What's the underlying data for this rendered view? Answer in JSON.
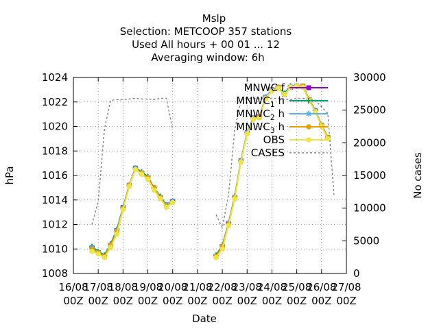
{
  "chart_data": {
    "type": "line",
    "title": [
      "Mslp",
      "Selection: METCOOP    357 stations",
      "Used  All hours  + 00 01 ... 12",
      "Averaging window:  6h"
    ],
    "xlabel": "Date",
    "ylabel": "hPa",
    "y2label": "No cases",
    "x_unit": "days from 16/08 00Z",
    "xlim": [
      0,
      11
    ],
    "ylim": [
      1008,
      1024
    ],
    "y2lim": [
      0,
      30000
    ],
    "x_ticks": [
      {
        "x": 0,
        "l1": "16/08",
        "l2": "00Z"
      },
      {
        "x": 1,
        "l1": "17/08",
        "l2": "00Z"
      },
      {
        "x": 2,
        "l1": "18/08",
        "l2": "00Z"
      },
      {
        "x": 3,
        "l1": "19/08",
        "l2": "00Z"
      },
      {
        "x": 4,
        "l1": "20/08",
        "l2": "00Z"
      },
      {
        "x": 5,
        "l1": "21/08",
        "l2": "00Z"
      },
      {
        "x": 6,
        "l1": "22/08",
        "l2": "00Z"
      },
      {
        "x": 7,
        "l1": "23/08",
        "l2": "00Z"
      },
      {
        "x": 8,
        "l1": "24/08",
        "l2": "00Z"
      },
      {
        "x": 9,
        "l1": "25/08",
        "l2": "00Z"
      },
      {
        "x": 10,
        "l1": "26/08",
        "l2": "00Z"
      },
      {
        "x": 11,
        "l1": "27/08",
        "l2": "00Z"
      }
    ],
    "y_ticks": [
      1008,
      1010,
      1012,
      1014,
      1016,
      1018,
      1020,
      1022,
      1024
    ],
    "y2_ticks": [
      0,
      5000,
      10000,
      15000,
      20000,
      25000,
      30000
    ],
    "grid": true,
    "legend_position": "top-right",
    "x": [
      0.75,
      1.0,
      1.25,
      1.5,
      1.75,
      2.0,
      2.25,
      2.5,
      2.75,
      3.0,
      3.25,
      3.5,
      3.75,
      4.0,
      5.75,
      6.0,
      6.25,
      6.5,
      6.75,
      7.0,
      7.25,
      7.5,
      7.75,
      8.0,
      8.25,
      8.5,
      8.75,
      9.0,
      9.25,
      9.5,
      9.75,
      10.0,
      10.25,
      10.5
    ],
    "series": [
      {
        "name": "MNWC_f",
        "color": "#9400d3",
        "marker": "square",
        "axis": "left",
        "values": [
          1010.1,
          1009.7,
          1009.4,
          1010.3,
          1011.5,
          1013.4,
          1015.2,
          1016.6,
          1016.2,
          1015.8,
          1015.0,
          1014.2,
          1013.6,
          1013.9,
          1009.4,
          1010.2,
          1012.1,
          1014.2,
          1017.2,
          1019.5,
          1020.7,
          1020.8,
          1022.4,
          1023.0,
          1023.2,
          1022.6,
          1023.2,
          1023.3,
          1023.3,
          1022.2,
          1021.3,
          1020.1,
          1019.1,
          null
        ]
      },
      {
        "name": "MNWC_1h",
        "color": "#009e73",
        "marker": "plus",
        "axis": "left",
        "values": [
          1010.2,
          1009.8,
          1009.5,
          1010.4,
          1011.6,
          1013.4,
          1015.2,
          1016.6,
          1016.3,
          1015.9,
          1015.0,
          1014.3,
          1013.6,
          1013.9,
          1009.5,
          1010.3,
          1012.1,
          1014.3,
          1017.2,
          1019.5,
          1020.7,
          1020.8,
          1022.4,
          1023.0,
          1023.2,
          1022.7,
          1023.3,
          1023.3,
          1023.3,
          1022.2,
          1021.3,
          1020.1,
          1019.1,
          null
        ]
      },
      {
        "name": "MNWC_2h",
        "color": "#56b4e9",
        "marker": "star",
        "axis": "left",
        "values": [
          1010.1,
          1009.7,
          1009.4,
          1010.3,
          1011.5,
          1013.4,
          1015.2,
          1016.6,
          1016.2,
          1015.8,
          1015.0,
          1014.2,
          1013.6,
          1013.9,
          1009.4,
          1010.2,
          1012.1,
          1014.2,
          1017.2,
          1019.5,
          1020.7,
          1020.8,
          1022.4,
          1023.0,
          1023.2,
          1022.6,
          1023.2,
          1023.3,
          1023.3,
          1022.2,
          1021.3,
          1020.1,
          1019.1,
          null
        ]
      },
      {
        "name": "MNWC_3h",
        "color": "#e69f00",
        "marker": "circle",
        "axis": "left",
        "values": [
          1010.0,
          1009.7,
          1009.4,
          1010.3,
          1011.4,
          1013.3,
          1015.2,
          1016.5,
          1016.2,
          1015.8,
          1015.0,
          1014.2,
          1013.5,
          1013.8,
          1009.4,
          1010.2,
          1012.0,
          1014.2,
          1017.1,
          1019.4,
          1020.6,
          1020.8,
          1022.3,
          1022.9,
          1023.2,
          1022.6,
          1023.2,
          1023.3,
          1023.3,
          1022.2,
          1021.2,
          1020.1,
          1019.1,
          null
        ]
      },
      {
        "name": "OBS",
        "color": "#f0e442",
        "marker": "circle",
        "axis": "left",
        "values": [
          1009.8,
          1009.6,
          1009.3,
          1010.1,
          1011.2,
          1013.2,
          1015.1,
          1016.5,
          1016.1,
          1015.7,
          1014.8,
          1014.1,
          1013.4,
          1013.8,
          1009.3,
          1010.0,
          1011.9,
          1014.1,
          1017.1,
          1019.4,
          1020.6,
          1020.7,
          1022.3,
          1022.9,
          1023.1,
          1022.6,
          1023.2,
          1023.3,
          1023.2,
          1022.1,
          1021.2,
          1020.0,
          1019.0,
          null
        ]
      },
      {
        "name": "CASES",
        "color": "#888888",
        "marker": "none",
        "dashed": true,
        "axis": "right",
        "values": [
          7500,
          11000,
          22000,
          26500,
          26600,
          26600,
          26700,
          26800,
          26700,
          26700,
          26600,
          26800,
          26800,
          22000,
          9000,
          7000,
          12000,
          22000,
          26500,
          26800,
          26800,
          26700,
          26800,
          26800,
          26800,
          26700,
          26600,
          26800,
          26800,
          26700,
          26500,
          25500,
          24500,
          12000
        ]
      }
    ],
    "legend": [
      {
        "label": "MNWC",
        "sub": "",
        "tail": "f",
        "series": 0
      },
      {
        "label": "MNWC",
        "sub": "1",
        "tail": "h",
        "series": 1
      },
      {
        "label": "MNWC",
        "sub": "2",
        "tail": "h",
        "series": 2
      },
      {
        "label": "MNWC",
        "sub": "3",
        "tail": "h",
        "series": 3
      },
      {
        "label": "OBS",
        "sub": "",
        "tail": "",
        "series": 4
      },
      {
        "label": "CASES",
        "sub": "",
        "tail": "",
        "series": 5
      }
    ]
  }
}
